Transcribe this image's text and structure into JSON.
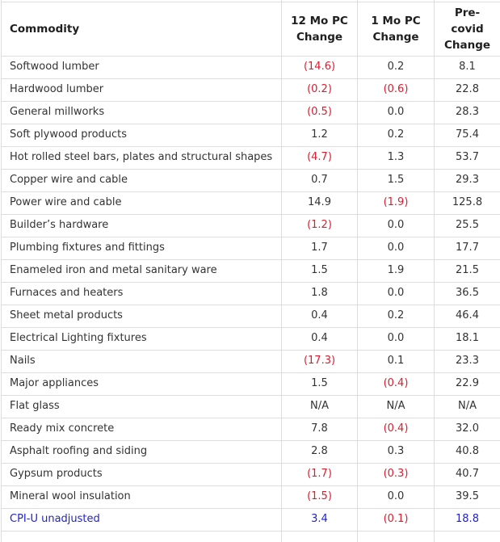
{
  "colors": {
    "border": "#dddddd",
    "text": "#333333",
    "header_text": "#1f1f1f",
    "negative": "#dc1c2e",
    "link": "#2222cc",
    "background": "#ffffff"
  },
  "header": {
    "commodity": "Commodity",
    "cols": [
      {
        "top": "12 Mo PC",
        "bottom": "Change"
      },
      {
        "top": "1 Mo PC",
        "bottom": "Change"
      },
      {
        "top": "Pre-covid",
        "bottom": "Change"
      }
    ]
  },
  "chart_data": {
    "type": "table",
    "columns": [
      "Commodity",
      "12 Mo PC Change",
      "1 Mo PC Change",
      "Pre-covid Change"
    ],
    "value_format_note": "Values in parentheses are negative and rendered in red; CPI-U unadjusted row is a blue hyperlink",
    "rows": [
      {
        "commodity": "Softwood lumber",
        "change_12mo": "(14.6)",
        "change_1mo": "0.2",
        "pre_covid": "8.1"
      },
      {
        "commodity": "Hardwood lumber",
        "change_12mo": "(0.2)",
        "change_1mo": "(0.6)",
        "pre_covid": "22.8"
      },
      {
        "commodity": "General millworks",
        "change_12mo": "(0.5)",
        "change_1mo": "0.0",
        "pre_covid": "28.3"
      },
      {
        "commodity": "Soft plywood products",
        "change_12mo": "1.2",
        "change_1mo": "0.2",
        "pre_covid": "75.4"
      },
      {
        "commodity": "Hot rolled steel bars, plates and structural shapes",
        "change_12mo": "(4.7)",
        "change_1mo": "1.3",
        "pre_covid": "53.7"
      },
      {
        "commodity": "Copper wire and cable",
        "change_12mo": "0.7",
        "change_1mo": "1.5",
        "pre_covid": "29.3"
      },
      {
        "commodity": "Power wire and cable",
        "change_12mo": "14.9",
        "change_1mo": "(1.9)",
        "pre_covid": "125.8"
      },
      {
        "commodity": "Builder’s hardware",
        "change_12mo": "(1.2)",
        "change_1mo": "0.0",
        "pre_covid": "25.5"
      },
      {
        "commodity": "Plumbing fixtures and fittings",
        "change_12mo": "1.7",
        "change_1mo": "0.0",
        "pre_covid": "17.7"
      },
      {
        "commodity": "Enameled iron and metal sanitary ware",
        "change_12mo": "1.5",
        "change_1mo": "1.9",
        "pre_covid": "21.5"
      },
      {
        "commodity": "Furnaces and heaters",
        "change_12mo": "1.8",
        "change_1mo": "0.0",
        "pre_covid": "36.5"
      },
      {
        "commodity": "Sheet metal products",
        "change_12mo": "0.4",
        "change_1mo": "0.2",
        "pre_covid": "46.4"
      },
      {
        "commodity": "Electrical Lighting fixtures",
        "change_12mo": "0.4",
        "change_1mo": "0.0",
        "pre_covid": "18.1"
      },
      {
        "commodity": "Nails",
        "change_12mo": "(17.3)",
        "change_1mo": "0.1",
        "pre_covid": "23.3"
      },
      {
        "commodity": "Major appliances",
        "change_12mo": "1.5",
        "change_1mo": "(0.4)",
        "pre_covid": "22.9"
      },
      {
        "commodity": "Flat glass",
        "change_12mo": "N/A",
        "change_1mo": "N/A",
        "pre_covid": "N/A"
      },
      {
        "commodity": "Ready mix concrete",
        "change_12mo": "7.8",
        "change_1mo": "(0.4)",
        "pre_covid": "32.0"
      },
      {
        "commodity": "Asphalt roofing and siding",
        "change_12mo": "2.8",
        "change_1mo": "0.3",
        "pre_covid": "40.8"
      },
      {
        "commodity": "Gypsum products",
        "change_12mo": "(1.7)",
        "change_1mo": "(0.3)",
        "pre_covid": "40.7"
      },
      {
        "commodity": "Mineral wool insulation",
        "change_12mo": "(1.5)",
        "change_1mo": "0.0",
        "pre_covid": "39.5"
      },
      {
        "commodity": "CPI-U unadjusted",
        "change_12mo": "3.4",
        "change_1mo": "(0.1)",
        "pre_covid": "18.8",
        "link": true
      }
    ]
  }
}
